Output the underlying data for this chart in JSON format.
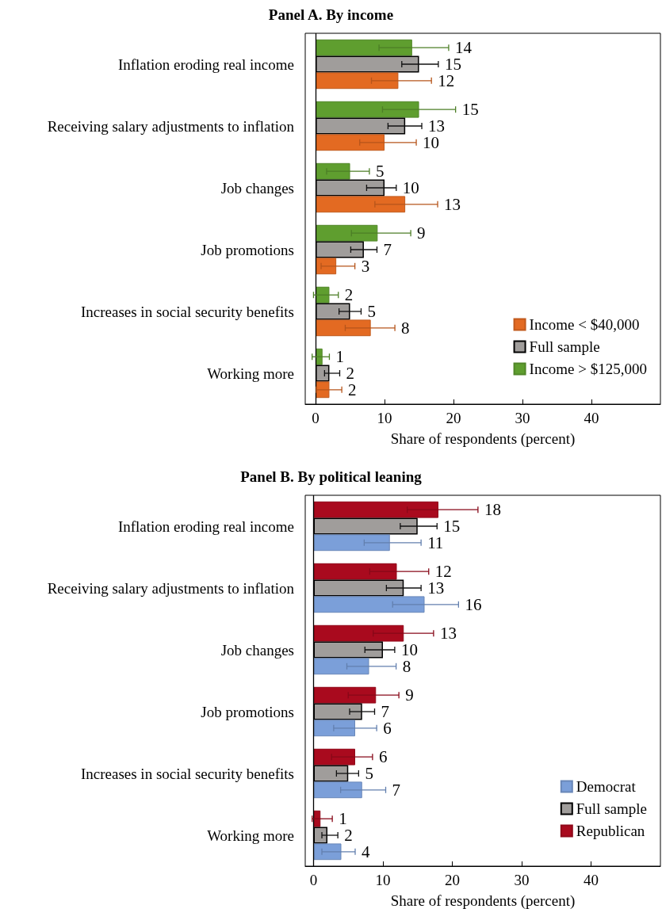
{
  "chart_data": [
    {
      "type": "bar",
      "title": "Panel A. By income",
      "orientation": "horizontal",
      "xlabel": "Share of respondents (percent)",
      "categories": [
        "Inflation eroding real income",
        "Receiving salary adjustments to inflation",
        "Job changes",
        "Job promotions",
        "Increases in social security benefits",
        "Working more"
      ],
      "xlim": [
        -1.5,
        50
      ],
      "xticks": [
        0,
        10,
        20,
        30,
        40
      ],
      "ref_lines": [
        {
          "axis": "x",
          "value": 0
        }
      ],
      "legend": "bottom right",
      "data_labels": true,
      "series": [
        {
          "name": "Income < $40,000",
          "color": "#e36a22",
          "values": [
            12,
            10,
            13,
            3,
            8,
            2
          ],
          "errors": [
            [
              8.1,
              16.8
            ],
            [
              6.4,
              14.6
            ],
            [
              8.6,
              17.7
            ],
            [
              0.8,
              5.7
            ],
            [
              4.3,
              11.5
            ],
            [
              0.1,
              3.8
            ]
          ]
        },
        {
          "name": "Full sample",
          "color": "#a09d9b",
          "values": [
            15,
            13,
            10,
            7,
            5,
            2
          ],
          "errors": [
            [
              12.5,
              17.8
            ],
            [
              10.5,
              15.4
            ],
            [
              7.4,
              11.7
            ],
            [
              5.1,
              8.9
            ],
            [
              3.4,
              6.6
            ],
            [
              1.3,
              3.5
            ]
          ]
        },
        {
          "name": "Income > $125,000",
          "color": "#5f9e2f",
          "values": [
            14,
            15,
            5,
            9,
            2,
            1
          ],
          "errors": [
            [
              9.2,
              19.3
            ],
            [
              9.7,
              20.3
            ],
            [
              1.6,
              7.8
            ],
            [
              5.2,
              13.8
            ],
            [
              -0.3,
              3.3
            ],
            [
              -0.5,
              2.0
            ]
          ]
        }
      ]
    },
    {
      "type": "bar",
      "title": "Panel B. By political leaning",
      "orientation": "horizontal",
      "xlabel": "Share of respondents (percent)",
      "categories": [
        "Inflation eroding real income",
        "Receiving salary adjustments to inflation",
        "Job changes",
        "Job promotions",
        "Increases in social security benefits",
        "Working more"
      ],
      "xlim": [
        -1.2,
        50
      ],
      "xticks": [
        0,
        10,
        20,
        30,
        40
      ],
      "ref_lines": [
        {
          "axis": "x",
          "value": 0
        }
      ],
      "legend": "bottom right",
      "data_labels": true,
      "series": [
        {
          "name": "Democrat",
          "color": "#7b9fd9",
          "values": [
            11,
            16,
            8,
            6,
            7,
            4
          ],
          "errors": [
            [
              7.3,
              15.5
            ],
            [
              11.4,
              20.9
            ],
            [
              4.8,
              11.9
            ],
            [
              2.9,
              9.1
            ],
            [
              3.9,
              10.4
            ],
            [
              1.2,
              6.0
            ]
          ]
        },
        {
          "name": "Full sample",
          "color": "#a09d9b",
          "values": [
            15,
            13,
            10,
            7,
            5,
            2
          ],
          "errors": [
            [
              12.5,
              17.8
            ],
            [
              10.5,
              15.5
            ],
            [
              7.4,
              11.7
            ],
            [
              5.2,
              8.8
            ],
            [
              3.3,
              6.5
            ],
            [
              1.2,
              3.5
            ]
          ]
        },
        {
          "name": "Republican",
          "color": "#a90a1e",
          "values": [
            18,
            12,
            13,
            9,
            6,
            1
          ],
          "errors": [
            [
              13.5,
              23.7
            ],
            [
              8.1,
              16.6
            ],
            [
              8.6,
              17.3
            ],
            [
              5.0,
              12.3
            ],
            [
              2.6,
              8.5
            ],
            [
              -0.2,
              2.7
            ]
          ]
        }
      ]
    }
  ]
}
